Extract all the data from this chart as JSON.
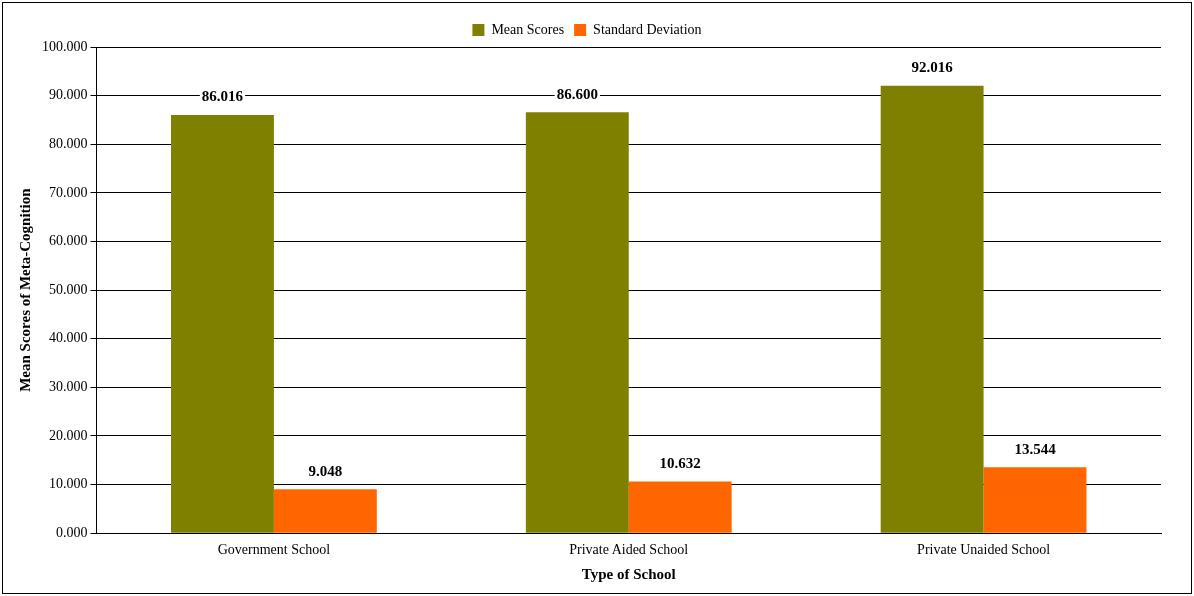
{
  "chart_data": {
    "type": "bar",
    "xlabel": "Type of School",
    "ylabel": "Mean Scores of Meta-Cognition",
    "categories": [
      "Government School",
      "Private Aided School",
      "Private Unaided School"
    ],
    "series": [
      {
        "name": "Mean Scores",
        "color": "#808000",
        "values": [
          86.016,
          86.6,
          92.016
        ],
        "value_labels": [
          "86.016",
          "86.600",
          "92.016"
        ]
      },
      {
        "name": "Standard Deviation",
        "color": "#ff6600",
        "values": [
          9.048,
          10.632,
          13.544
        ],
        "value_labels": [
          "9.048",
          "10.632",
          "13.544"
        ]
      }
    ],
    "ylim": [
      0,
      100
    ],
    "yticks": [
      {
        "value": 0,
        "label": "0.000"
      },
      {
        "value": 10,
        "label": "10.000"
      },
      {
        "value": 20,
        "label": "20.000"
      },
      {
        "value": 30,
        "label": "30.000"
      },
      {
        "value": 40,
        "label": "40.000"
      },
      {
        "value": 50,
        "label": "50.000"
      },
      {
        "value": 60,
        "label": "60.000"
      },
      {
        "value": 70,
        "label": "70.000"
      },
      {
        "value": 80,
        "label": "80.000"
      },
      {
        "value": 90,
        "label": "90.000"
      },
      {
        "value": 100,
        "label": "100.000"
      }
    ],
    "grid": "y",
    "legend": "top"
  }
}
